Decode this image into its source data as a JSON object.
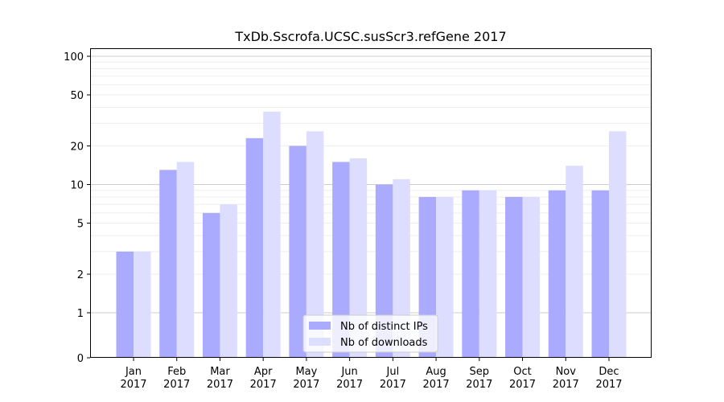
{
  "chart_data": {
    "type": "bar",
    "title": "TxDb.Sscrofa.UCSC.susScr3.refGene 2017",
    "xlabel": "",
    "ylabel": "",
    "yscale": "symlog",
    "ylim": [
      0,
      110
    ],
    "yticks": [
      0,
      1,
      2,
      5,
      10,
      20,
      50,
      100
    ],
    "grid": true,
    "legend_position": "bottom-center",
    "categories": [
      [
        "Jan",
        "2017"
      ],
      [
        "Feb",
        "2017"
      ],
      [
        "Mar",
        "2017"
      ],
      [
        "Apr",
        "2017"
      ],
      [
        "May",
        "2017"
      ],
      [
        "Jun",
        "2017"
      ],
      [
        "Jul",
        "2017"
      ],
      [
        "Aug",
        "2017"
      ],
      [
        "Sep",
        "2017"
      ],
      [
        "Oct",
        "2017"
      ],
      [
        "Nov",
        "2017"
      ],
      [
        "Dec",
        "2017"
      ]
    ],
    "series": [
      {
        "name": "Nb of distinct IPs",
        "color": "#aaaaff",
        "values": [
          3,
          13,
          6,
          23,
          20,
          15,
          10,
          8,
          9,
          8,
          9,
          9
        ]
      },
      {
        "name": "Nb of downloads",
        "color": "#ddddff",
        "values": [
          3,
          15,
          7,
          37,
          26,
          16,
          11,
          8,
          9,
          8,
          14,
          26
        ]
      }
    ]
  }
}
